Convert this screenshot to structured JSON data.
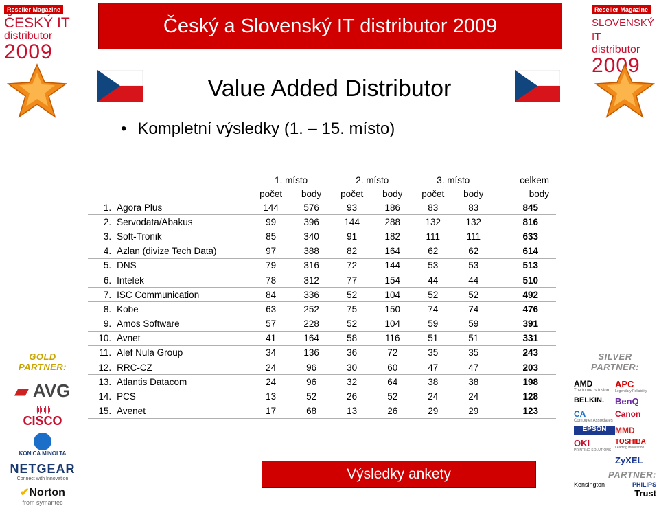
{
  "banner": {
    "title": "Český a Slovenský IT distributor 2009"
  },
  "badge_left": {
    "magazine": "Reseller Magazine",
    "country": "ČESKÝ IT",
    "word": "distributor",
    "year": "2009"
  },
  "badge_right": {
    "magazine": "Reseller Magazine",
    "country": "SLOVENSKÝ IT",
    "word": "distributor",
    "year": "2009"
  },
  "subtitle": "Value Added Distributor",
  "bullet": "Kompletní výsledky (1. – 15. místo)",
  "table": {
    "group_headers": [
      "1. místo",
      "2. místo",
      "3. místo",
      "celkem"
    ],
    "sub_headers": [
      "počet",
      "body",
      "počet",
      "body",
      "počet",
      "body",
      "body"
    ],
    "rows": [
      {
        "rank": "1.",
        "name": "Agora Plus",
        "p1": "144",
        "b1": "576",
        "p2": "93",
        "b2": "186",
        "p3": "83",
        "b3": "83",
        "total": "845"
      },
      {
        "rank": "2.",
        "name": "Servodata/Abakus",
        "p1": "99",
        "b1": "396",
        "p2": "144",
        "b2": "288",
        "p3": "132",
        "b3": "132",
        "total": "816"
      },
      {
        "rank": "3.",
        "name": "Soft-Tronik",
        "p1": "85",
        "b1": "340",
        "p2": "91",
        "b2": "182",
        "p3": "111",
        "b3": "111",
        "total": "633"
      },
      {
        "rank": "4.",
        "name": "Azlan (divize Tech Data)",
        "p1": "97",
        "b1": "388",
        "p2": "82",
        "b2": "164",
        "p3": "62",
        "b3": "62",
        "total": "614"
      },
      {
        "rank": "5.",
        "name": "DNS",
        "p1": "79",
        "b1": "316",
        "p2": "72",
        "b2": "144",
        "p3": "53",
        "b3": "53",
        "total": "513"
      },
      {
        "rank": "6.",
        "name": "Intelek",
        "p1": "78",
        "b1": "312",
        "p2": "77",
        "b2": "154",
        "p3": "44",
        "b3": "44",
        "total": "510"
      },
      {
        "rank": "7.",
        "name": "ISC Communication",
        "p1": "84",
        "b1": "336",
        "p2": "52",
        "b2": "104",
        "p3": "52",
        "b3": "52",
        "total": "492"
      },
      {
        "rank": "8.",
        "name": "Kobe",
        "p1": "63",
        "b1": "252",
        "p2": "75",
        "b2": "150",
        "p3": "74",
        "b3": "74",
        "total": "476"
      },
      {
        "rank": "9.",
        "name": "Amos Software",
        "p1": "57",
        "b1": "228",
        "p2": "52",
        "b2": "104",
        "p3": "59",
        "b3": "59",
        "total": "391"
      },
      {
        "rank": "10.",
        "name": "Avnet",
        "p1": "41",
        "b1": "164",
        "p2": "58",
        "b2": "116",
        "p3": "51",
        "b3": "51",
        "total": "331"
      },
      {
        "rank": "11.",
        "name": "Alef Nula Group",
        "p1": "34",
        "b1": "136",
        "p2": "36",
        "b2": "72",
        "p3": "35",
        "b3": "35",
        "total": "243"
      },
      {
        "rank": "12.",
        "name": "RRC-CZ",
        "p1": "24",
        "b1": "96",
        "p2": "30",
        "b2": "60",
        "p3": "47",
        "b3": "47",
        "total": "203"
      },
      {
        "rank": "13.",
        "name": "Atlantis Datacom",
        "p1": "24",
        "b1": "96",
        "p2": "32",
        "b2": "64",
        "p3": "38",
        "b3": "38",
        "total": "198"
      },
      {
        "rank": "14.",
        "name": "PCS",
        "p1": "13",
        "b1": "52",
        "p2": "26",
        "b2": "52",
        "p3": "24",
        "b3": "24",
        "total": "128"
      },
      {
        "rank": "15.",
        "name": "Avenet",
        "p1": "17",
        "b1": "68",
        "p2": "13",
        "b2": "26",
        "p3": "29",
        "b3": "29",
        "total": "123"
      }
    ]
  },
  "gold_partners": {
    "heading": "GOLD PARTNER:",
    "logos": [
      "AVG",
      "CISCO",
      "KONICA MINOLTA",
      "NETGEAR",
      "Connect with Innovation",
      "Norton",
      "from symantec"
    ]
  },
  "silver_partners": {
    "heading": "SILVER PARTNER:",
    "logos": [
      "AMD",
      "The future is fusion",
      "APC",
      "Legendary Reliability",
      "BELKIN.",
      "BenQ",
      "CA",
      "Canon",
      "Computer Associates",
      "MMD",
      "EPSON",
      "TOSHIBA",
      "Leading Innovation",
      "OKI",
      "PRINTING SOLUTIONS",
      "ZyXEL"
    ]
  },
  "partner": {
    "heading": "PARTNER:",
    "logos": [
      "Kensington",
      "PHILIPS",
      "Trust"
    ]
  },
  "footer": {
    "label": "Výsledky ankety"
  },
  "colors": {
    "banner_red": "#d10000",
    "flag_blue": "#11457e",
    "flag_red": "#d7141a"
  }
}
